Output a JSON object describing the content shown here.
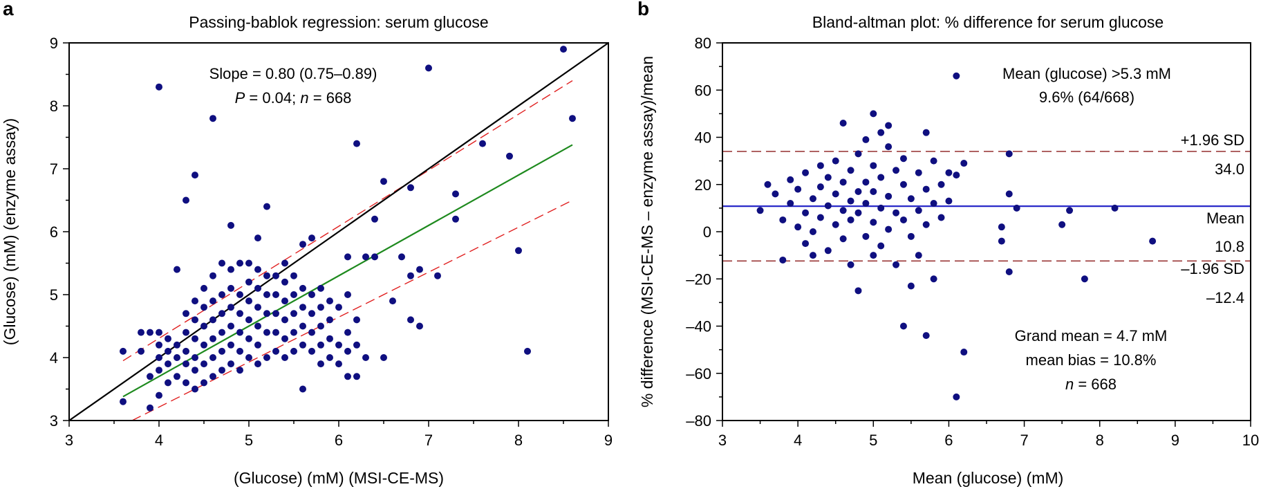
{
  "panel_a": {
    "letter": "a",
    "slope_text": "Slope = 0.80 (0.75–0.89)",
    "p_italic": "P",
    "p_rest": " = 0.04; ",
    "n_italic": "n",
    "n_rest": " = 668"
  },
  "panel_b": {
    "letter": "b",
    "mean_above_line1": "Mean (glucose) >5.3 mM",
    "mean_above_line2": "9.6% (64/668)",
    "upper_label": "+1.96 SD",
    "upper_value": "34.0",
    "mean_label": "Mean",
    "mean_value": "10.8",
    "lower_label": "–1.96 SD",
    "lower_value": "–12.4",
    "grand_mean": "Grand mean = 4.7 mM",
    "mean_bias": "mean bias = 10.8%",
    "n_italic": "n",
    "n_rest": " = 668"
  },
  "colors": {
    "points": "#0f0f80",
    "identity_line": "#000000",
    "regression_line": "#1e8a1e",
    "ci_lines": "#e02020",
    "sd_lines": "#8b1a1a",
    "mean_line": "#2828c8"
  },
  "chart_data": [
    {
      "type": "scatter",
      "title": "Passing-bablok regression: serum glucose",
      "xlabel": "(Glucose) (mM) (MSI-CE-MS)",
      "ylabel": "(Glucose) (mM) (enzyme assay)",
      "xlim": [
        3,
        9
      ],
      "ylim": [
        3,
        9
      ],
      "xticks": [
        "3",
        "4",
        "5",
        "6",
        "7",
        "8",
        "9"
      ],
      "yticks": [
        "3",
        "4",
        "5",
        "6",
        "7",
        "8",
        "9"
      ],
      "grid": false,
      "lines": [
        {
          "name": "identity",
          "x": [
            3,
            9
          ],
          "y": [
            3,
            9
          ]
        },
        {
          "name": "regression",
          "x": [
            3.6,
            8.6
          ],
          "y": [
            3.38,
            7.38
          ]
        },
        {
          "name": "upper 95% CI",
          "x": [
            3.6,
            8.6
          ],
          "y": [
            3.95,
            8.4
          ]
        },
        {
          "name": "lower 95% CI",
          "x": [
            3.7,
            8.6
          ],
          "y": [
            3.0,
            6.5
          ]
        }
      ],
      "points": [
        [
          3.6,
          4.1
        ],
        [
          3.6,
          3.3
        ],
        [
          3.8,
          4.1
        ],
        [
          3.8,
          4.4
        ],
        [
          3.9,
          3.2
        ],
        [
          3.9,
          3.7
        ],
        [
          3.9,
          4.4
        ],
        [
          4.0,
          8.3
        ],
        [
          4.0,
          3.4
        ],
        [
          4.0,
          3.8
        ],
        [
          4.0,
          4.0
        ],
        [
          4.0,
          4.2
        ],
        [
          4.0,
          4.4
        ],
        [
          4.1,
          3.6
        ],
        [
          4.1,
          3.9
        ],
        [
          4.1,
          4.1
        ],
        [
          4.1,
          4.3
        ],
        [
          4.2,
          3.7
        ],
        [
          4.2,
          4.0
        ],
        [
          4.2,
          4.2
        ],
        [
          4.2,
          5.4
        ],
        [
          4.3,
          6.5
        ],
        [
          4.3,
          3.6
        ],
        [
          4.3,
          3.9
        ],
        [
          4.3,
          4.1
        ],
        [
          4.3,
          4.4
        ],
        [
          4.3,
          4.7
        ],
        [
          4.4,
          6.9
        ],
        [
          4.4,
          3.5
        ],
        [
          4.4,
          3.8
        ],
        [
          4.4,
          4.0
        ],
        [
          4.4,
          4.3
        ],
        [
          4.4,
          4.6
        ],
        [
          4.4,
          4.9
        ],
        [
          4.5,
          3.6
        ],
        [
          4.5,
          3.9
        ],
        [
          4.5,
          4.2
        ],
        [
          4.5,
          4.5
        ],
        [
          4.5,
          4.8
        ],
        [
          4.5,
          5.1
        ],
        [
          4.6,
          7.8
        ],
        [
          4.6,
          3.7
        ],
        [
          4.6,
          4.0
        ],
        [
          4.6,
          4.3
        ],
        [
          4.6,
          4.6
        ],
        [
          4.6,
          4.9
        ],
        [
          4.6,
          5.3
        ],
        [
          4.7,
          3.8
        ],
        [
          4.7,
          4.1
        ],
        [
          4.7,
          4.4
        ],
        [
          4.7,
          4.7
        ],
        [
          4.7,
          5.0
        ],
        [
          4.7,
          5.5
        ],
        [
          4.8,
          6.1
        ],
        [
          4.8,
          3.9
        ],
        [
          4.8,
          4.2
        ],
        [
          4.8,
          4.5
        ],
        [
          4.8,
          4.8
        ],
        [
          4.8,
          5.1
        ],
        [
          4.8,
          5.4
        ],
        [
          4.9,
          3.8
        ],
        [
          4.9,
          4.1
        ],
        [
          4.9,
          4.4
        ],
        [
          4.9,
          4.7
        ],
        [
          4.9,
          5.0
        ],
        [
          4.9,
          5.5
        ],
        [
          5.0,
          4.0
        ],
        [
          5.0,
          4.3
        ],
        [
          5.0,
          4.6
        ],
        [
          5.0,
          4.9
        ],
        [
          5.0,
          5.2
        ],
        [
          5.0,
          5.5
        ],
        [
          5.1,
          5.9
        ],
        [
          5.1,
          3.9
        ],
        [
          5.1,
          4.2
        ],
        [
          5.1,
          4.5
        ],
        [
          5.1,
          4.8
        ],
        [
          5.1,
          5.1
        ],
        [
          5.1,
          5.4
        ],
        [
          5.2,
          6.4
        ],
        [
          5.2,
          4.0
        ],
        [
          5.2,
          4.4
        ],
        [
          5.2,
          4.7
        ],
        [
          5.2,
          5.0
        ],
        [
          5.2,
          5.3
        ],
        [
          5.3,
          4.1
        ],
        [
          5.3,
          4.4
        ],
        [
          5.3,
          4.7
        ],
        [
          5.3,
          5.0
        ],
        [
          5.3,
          5.3
        ],
        [
          5.4,
          4.0
        ],
        [
          5.4,
          4.3
        ],
        [
          5.4,
          4.6
        ],
        [
          5.4,
          4.9
        ],
        [
          5.4,
          5.2
        ],
        [
          5.4,
          5.5
        ],
        [
          5.5,
          4.1
        ],
        [
          5.5,
          4.4
        ],
        [
          5.5,
          4.7
        ],
        [
          5.5,
          5.0
        ],
        [
          5.5,
          5.3
        ],
        [
          5.6,
          3.5
        ],
        [
          5.6,
          4.2
        ],
        [
          5.6,
          4.5
        ],
        [
          5.6,
          4.8
        ],
        [
          5.6,
          5.1
        ],
        [
          5.6,
          5.8
        ],
        [
          5.7,
          5.9
        ],
        [
          5.7,
          4.1
        ],
        [
          5.7,
          4.4
        ],
        [
          5.7,
          4.7
        ],
        [
          5.7,
          5.0
        ],
        [
          5.8,
          3.9
        ],
        [
          5.8,
          4.2
        ],
        [
          5.8,
          4.5
        ],
        [
          5.8,
          4.8
        ],
        [
          5.8,
          5.1
        ],
        [
          5.9,
          4.0
        ],
        [
          5.9,
          4.3
        ],
        [
          5.9,
          4.6
        ],
        [
          5.9,
          4.9
        ],
        [
          6.0,
          3.9
        ],
        [
          6.0,
          4.2
        ],
        [
          6.0,
          4.8
        ],
        [
          6.1,
          4.1
        ],
        [
          6.1,
          4.4
        ],
        [
          6.1,
          5.0
        ],
        [
          6.1,
          5.6
        ],
        [
          6.1,
          3.7
        ],
        [
          6.2,
          7.4
        ],
        [
          6.2,
          4.2
        ],
        [
          6.2,
          4.6
        ],
        [
          6.2,
          3.7
        ],
        [
          6.3,
          5.6
        ],
        [
          6.3,
          4.0
        ],
        [
          6.4,
          6.2
        ],
        [
          6.4,
          5.6
        ],
        [
          6.5,
          6.8
        ],
        [
          6.5,
          4.0
        ],
        [
          6.6,
          4.9
        ],
        [
          6.7,
          5.6
        ],
        [
          6.8,
          6.7
        ],
        [
          6.8,
          5.3
        ],
        [
          6.8,
          4.6
        ],
        [
          6.9,
          5.4
        ],
        [
          6.9,
          4.5
        ],
        [
          7.0,
          8.6
        ],
        [
          7.1,
          5.3
        ],
        [
          7.3,
          6.6
        ],
        [
          7.3,
          6.2
        ],
        [
          7.6,
          7.4
        ],
        [
          7.9,
          7.2
        ],
        [
          8.0,
          5.7
        ],
        [
          8.1,
          4.1
        ],
        [
          8.5,
          8.9
        ],
        [
          8.6,
          7.8
        ]
      ]
    },
    {
      "type": "scatter",
      "title": "Bland-altman plot: % difference for serum glucose",
      "xlabel": "Mean (glucose) (mM)",
      "ylabel": "% difference (MSI-CE-MS – enzyme assay)/mean",
      "xlim": [
        3,
        10
      ],
      "ylim": [
        -80,
        80
      ],
      "xticks": [
        "3",
        "4",
        "5",
        "6",
        "7",
        "8",
        "9",
        "10"
      ],
      "yticks": [
        "80",
        "60",
        "40",
        "20",
        "0",
        "–20",
        "–40",
        "–60",
        "–80"
      ],
      "grid": false,
      "hlines": [
        {
          "name": "+1.96 SD",
          "y": 34.0
        },
        {
          "name": "Mean",
          "y": 10.8
        },
        {
          "name": "–1.96 SD",
          "y": -12.4
        }
      ],
      "points": [
        [
          3.5,
          9
        ],
        [
          3.6,
          20
        ],
        [
          3.7,
          16
        ],
        [
          3.8,
          5
        ],
        [
          3.8,
          -12
        ],
        [
          3.9,
          12
        ],
        [
          3.9,
          22
        ],
        [
          4.0,
          2
        ],
        [
          4.0,
          18
        ],
        [
          4.1,
          -5
        ],
        [
          4.1,
          8
        ],
        [
          4.1,
          25
        ],
        [
          4.2,
          14
        ],
        [
          4.2,
          -10
        ],
        [
          4.2,
          0
        ],
        [
          4.3,
          6
        ],
        [
          4.3,
          28
        ],
        [
          4.3,
          19
        ],
        [
          4.4,
          -8
        ],
        [
          4.4,
          11
        ],
        [
          4.4,
          23
        ],
        [
          4.5,
          3
        ],
        [
          4.5,
          16
        ],
        [
          4.5,
          30
        ],
        [
          4.6,
          -3
        ],
        [
          4.6,
          9
        ],
        [
          4.6,
          21
        ],
        [
          4.6,
          46
        ],
        [
          4.7,
          13
        ],
        [
          4.7,
          -14
        ],
        [
          4.7,
          26
        ],
        [
          4.7,
          5
        ],
        [
          4.8,
          17
        ],
        [
          4.8,
          33
        ],
        [
          4.8,
          -25
        ],
        [
          4.8,
          8
        ],
        [
          4.9,
          21
        ],
        [
          4.9,
          39
        ],
        [
          4.9,
          -2
        ],
        [
          4.9,
          12
        ],
        [
          5.0,
          50
        ],
        [
          5.0,
          28
        ],
        [
          5.0,
          4
        ],
        [
          5.0,
          17
        ],
        [
          5.0,
          -10
        ],
        [
          5.1,
          42
        ],
        [
          5.1,
          23
        ],
        [
          5.1,
          10
        ],
        [
          5.1,
          -6
        ],
        [
          5.2,
          36
        ],
        [
          5.2,
          15
        ],
        [
          5.2,
          45
        ],
        [
          5.2,
          1
        ],
        [
          5.3,
          26
        ],
        [
          5.3,
          8
        ],
        [
          5.3,
          -14
        ],
        [
          5.4,
          -40
        ],
        [
          5.4,
          20
        ],
        [
          5.4,
          5
        ],
        [
          5.4,
          31
        ],
        [
          5.5,
          -23
        ],
        [
          5.5,
          14
        ],
        [
          5.5,
          -2
        ],
        [
          5.6,
          25
        ],
        [
          5.6,
          9
        ],
        [
          5.6,
          -10
        ],
        [
          5.7,
          42
        ],
        [
          5.7,
          18
        ],
        [
          5.7,
          -44
        ],
        [
          5.7,
          3
        ],
        [
          5.8,
          30
        ],
        [
          5.8,
          -20
        ],
        [
          5.8,
          12
        ],
        [
          5.9,
          20
        ],
        [
          5.9,
          6
        ],
        [
          6.0,
          13
        ],
        [
          6.0,
          25
        ],
        [
          6.1,
          66
        ],
        [
          6.1,
          24
        ],
        [
          6.1,
          -70
        ],
        [
          6.2,
          29
        ],
        [
          6.2,
          -51
        ],
        [
          6.7,
          -4
        ],
        [
          6.7,
          2
        ],
        [
          6.8,
          16
        ],
        [
          6.8,
          33
        ],
        [
          6.8,
          -17
        ],
        [
          6.9,
          10
        ],
        [
          7.5,
          3
        ],
        [
          7.6,
          9
        ],
        [
          7.8,
          -20
        ],
        [
          8.2,
          10
        ],
        [
          8.7,
          -4
        ]
      ]
    }
  ]
}
